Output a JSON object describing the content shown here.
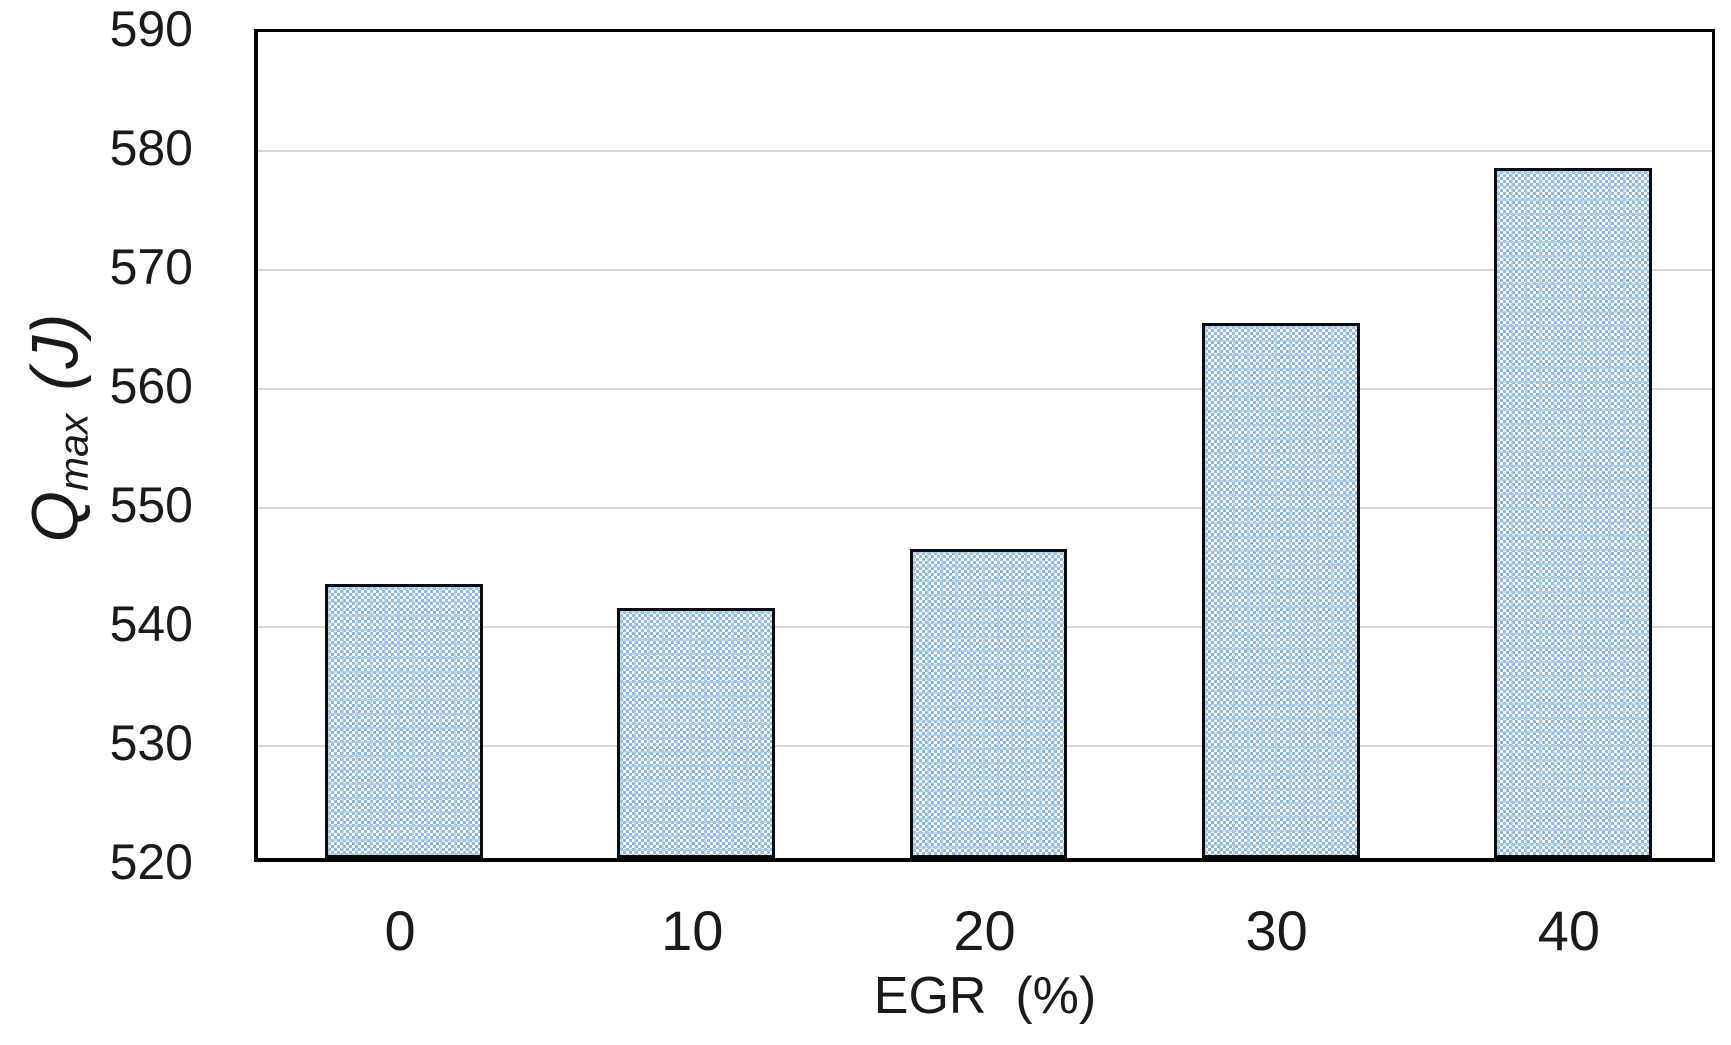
{
  "chart_data": {
    "type": "bar",
    "title": "",
    "categories": [
      "0",
      "10",
      "20",
      "30",
      "40"
    ],
    "values": [
      543,
      541,
      546,
      565,
      578
    ],
    "series_name": "Qmax",
    "xlabel": "EGR  (%)",
    "ylabel": "Qmax (J)",
    "ylabel_parts": {
      "symbol": "Q",
      "subscript": "max",
      "unit": "(J)"
    },
    "ylim": [
      520,
      590
    ],
    "ytick_step": 10,
    "yticks": [
      590,
      580,
      570,
      560,
      550,
      540,
      530,
      520
    ],
    "grid": true,
    "legend": "none",
    "layout": {
      "bar_width_fraction": 0.54
    },
    "colors": {
      "bar_pattern": "#8fb8dc",
      "bar_background": "#ffffff",
      "bar_border": "#0b0b10",
      "gridline": "#d9d9d9",
      "plot_border": "#000000",
      "text": "#1a1a1a",
      "background": "#ffffff"
    }
  }
}
